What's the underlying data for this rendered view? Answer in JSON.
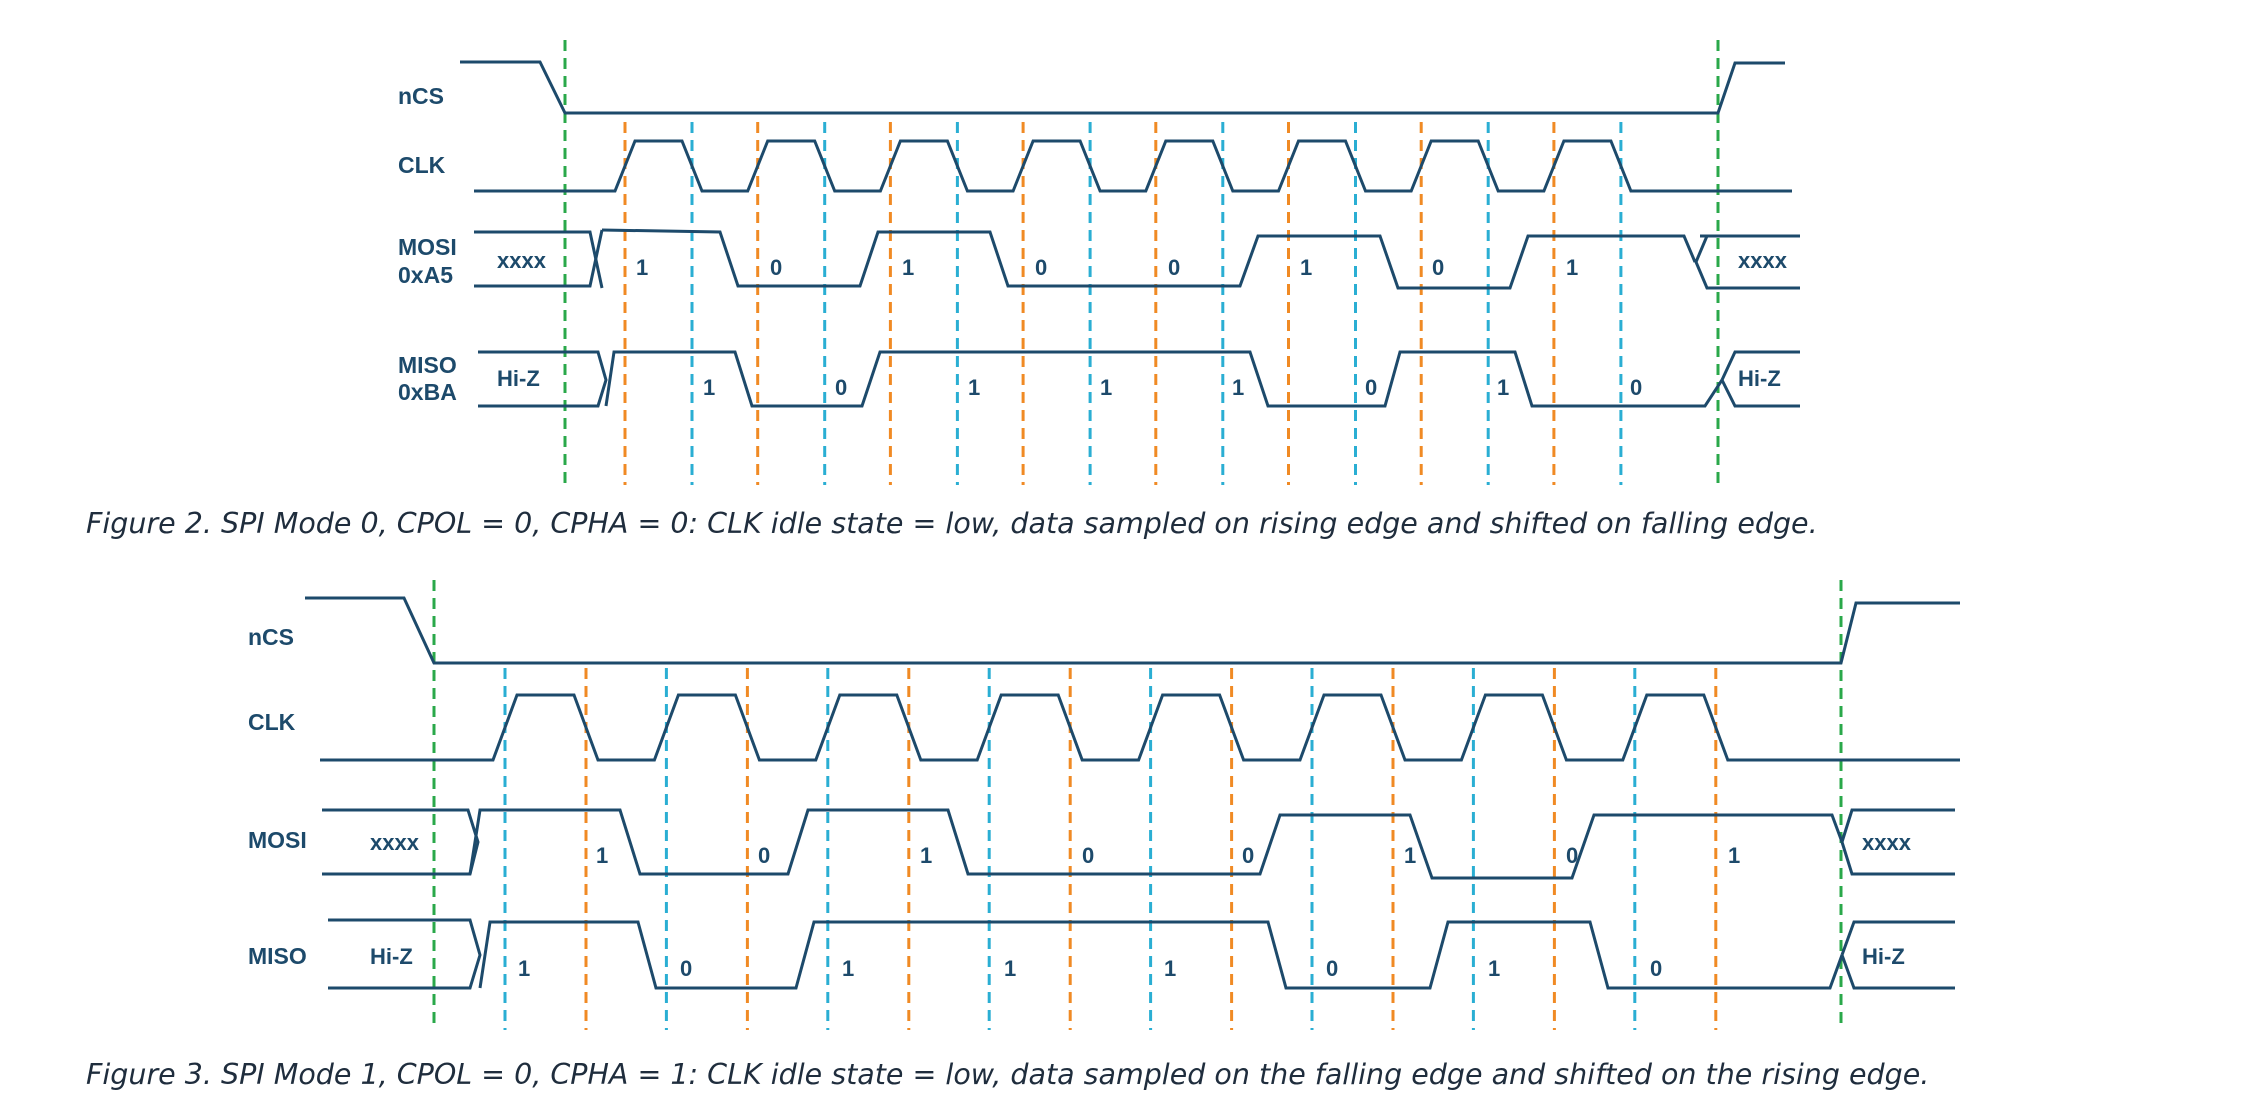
{
  "colors": {
    "signal": "#1d4a6b",
    "chip_select": "#2aa84a",
    "sample_edge": "#f08a24",
    "shift_edge": "#2aaed3"
  },
  "figures": [
    {
      "caption": "Figure 2. SPI Mode 0, CPOL = 0, CPHA = 0: CLK idle state = low, data sampled on rising edge and shifted on falling edge.",
      "labels": {
        "ncs": "nCS",
        "clk": "CLK",
        "mosi": "MOSI",
        "mosi_value": "0xA5",
        "miso": "MISO",
        "miso_value": "0xBA",
        "mosi_idle": "xxxx",
        "miso_idle": "Hi-Z"
      },
      "mosi_bits": [
        "1",
        "0",
        "1",
        "0",
        "0",
        "1",
        "0",
        "1"
      ],
      "miso_bits": [
        "1",
        "0",
        "1",
        "1",
        "1",
        "0",
        "1",
        "0"
      ]
    },
    {
      "caption": "Figure 3. SPI Mode 1, CPOL = 0, CPHA = 1: CLK idle state = low, data sampled on the falling edge and shifted on the rising edge.",
      "labels": {
        "ncs": "nCS",
        "clk": "CLK",
        "mosi": "MOSI",
        "miso": "MISO",
        "mosi_idle": "xxxx",
        "miso_idle": "Hi-Z"
      },
      "mosi_bits": [
        "1",
        "0",
        "1",
        "0",
        "0",
        "1",
        "0",
        "1"
      ],
      "miso_bits": [
        "1",
        "0",
        "1",
        "1",
        "1",
        "0",
        "1",
        "0"
      ]
    }
  ]
}
